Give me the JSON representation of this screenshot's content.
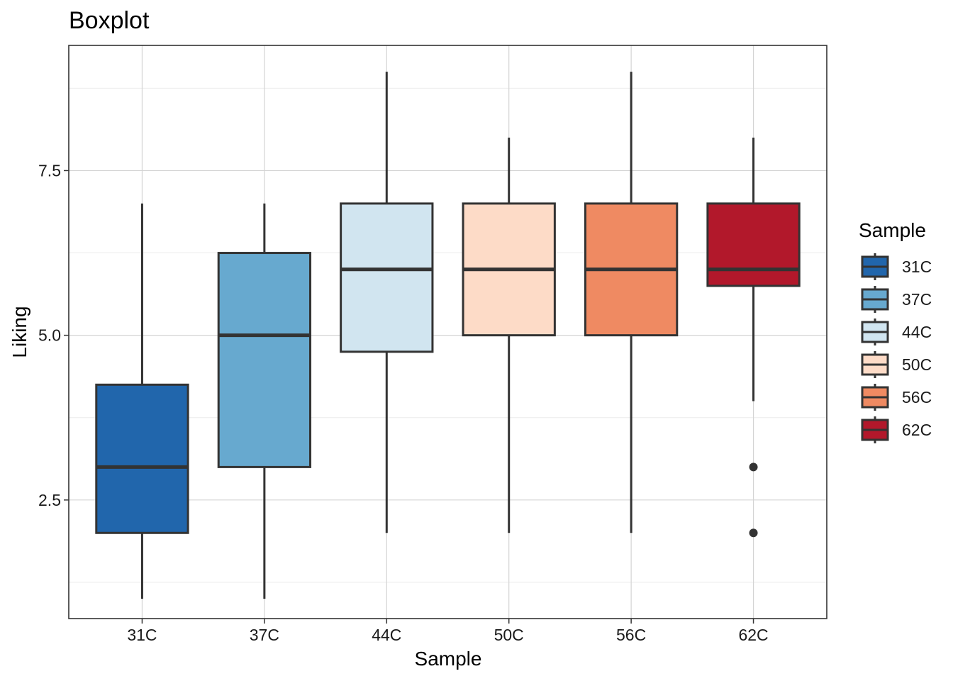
{
  "chart_data": {
    "type": "box",
    "title": "Boxplot",
    "xlabel": "Sample",
    "ylabel": "Liking",
    "ylim": [
      0.7,
      9.4
    ],
    "yticks": [
      2.5,
      5.0,
      7.5
    ],
    "ytick_labels": [
      "2.5",
      "5.0",
      "7.5"
    ],
    "grid": true,
    "legend": {
      "title": "Sample",
      "position": "right"
    },
    "categories": [
      "31C",
      "37C",
      "44C",
      "50C",
      "56C",
      "62C"
    ],
    "series": [
      {
        "name": "31C",
        "color": "#2166ac",
        "whisker_low": 1,
        "q1": 2,
        "median": 3,
        "q3": 4.25,
        "whisker_high": 7,
        "outliers": []
      },
      {
        "name": "37C",
        "color": "#67a9cf",
        "whisker_low": 1,
        "q1": 3,
        "median": 5,
        "q3": 6.25,
        "whisker_high": 7,
        "outliers": []
      },
      {
        "name": "44C",
        "color": "#d1e5f0",
        "whisker_low": 2,
        "q1": 4.75,
        "median": 6,
        "q3": 7,
        "whisker_high": 9,
        "outliers": []
      },
      {
        "name": "50C",
        "color": "#fddbc7",
        "whisker_low": 2,
        "q1": 5,
        "median": 6,
        "q3": 7,
        "whisker_high": 8,
        "outliers": []
      },
      {
        "name": "56C",
        "color": "#ef8a62",
        "whisker_low": 2,
        "q1": 5,
        "median": 6,
        "q3": 7,
        "whisker_high": 9,
        "outliers": []
      },
      {
        "name": "62C",
        "color": "#b2182b",
        "whisker_low": 4,
        "q1": 5.75,
        "median": 6,
        "q3": 7,
        "whisker_high": 8,
        "outliers": [
          3,
          2
        ]
      }
    ]
  }
}
